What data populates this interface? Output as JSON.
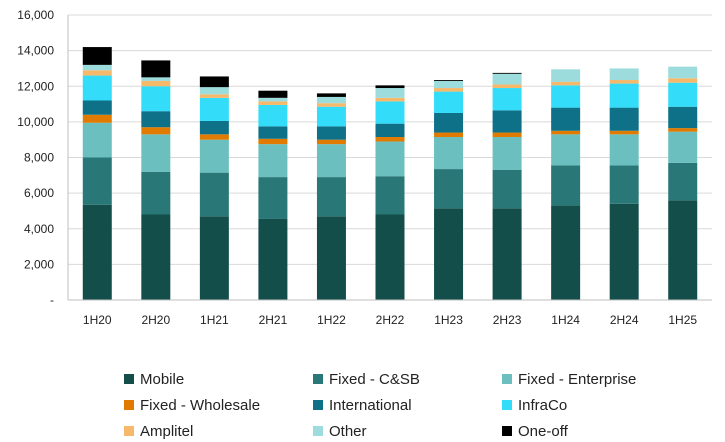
{
  "chart_data": {
    "type": "bar",
    "stacked": true,
    "title": "",
    "xlabel": "",
    "ylabel": "",
    "ylim": [
      0,
      16000
    ],
    "y_ticks": [
      "-",
      "2,000",
      "4,000",
      "6,000",
      "8,000",
      "10,000",
      "12,000",
      "14,000",
      "16,000"
    ],
    "grid": true,
    "legend_position": "bottom",
    "categories": [
      "1H20",
      "2H20",
      "1H21",
      "2H21",
      "1H22",
      "2H22",
      "1H23",
      "2H23",
      "1H24",
      "2H24",
      "1H25"
    ],
    "series": [
      {
        "name": "Mobile",
        "color": "#134e4a",
        "values": [
          5350,
          4800,
          4700,
          4550,
          4700,
          4800,
          5150,
          5150,
          5300,
          5400,
          5600
        ]
      },
      {
        "name": "Fixed - C&SB",
        "color": "#2a7778",
        "values": [
          2650,
          2400,
          2450,
          2350,
          2200,
          2150,
          2200,
          2150,
          2250,
          2150,
          2100
        ]
      },
      {
        "name": "Fixed - Enterprise",
        "color": "#6bbfbf",
        "values": [
          1950,
          2100,
          1850,
          1850,
          1850,
          1950,
          1800,
          1850,
          1750,
          1750,
          1750
        ]
      },
      {
        "name": "Fixed  - Wholesale",
        "color": "#e07b00",
        "values": [
          450,
          400,
          300,
          300,
          250,
          250,
          250,
          250,
          200,
          200,
          200
        ]
      },
      {
        "name": "International",
        "color": "#0e7188",
        "values": [
          800,
          900,
          750,
          700,
          750,
          750,
          1100,
          1250,
          1300,
          1300,
          1200
        ]
      },
      {
        "name": "InfraCo",
        "color": "#33ddf9",
        "values": [
          1400,
          1400,
          1300,
          1200,
          1100,
          1250,
          1200,
          1250,
          1250,
          1350,
          1350
        ]
      },
      {
        "name": "Amplitel",
        "color": "#f6b96b",
        "values": [
          300,
          300,
          200,
          200,
          200,
          200,
          200,
          200,
          200,
          200,
          250
        ]
      },
      {
        "name": "Other",
        "color": "#9cdcdc",
        "values": [
          300,
          200,
          400,
          200,
          350,
          550,
          400,
          600,
          700,
          650,
          650
        ]
      },
      {
        "name": "One-off",
        "color": "#000000",
        "values": [
          1000,
          950,
          600,
          400,
          200,
          150,
          50,
          50,
          0,
          0,
          0
        ]
      }
    ]
  }
}
